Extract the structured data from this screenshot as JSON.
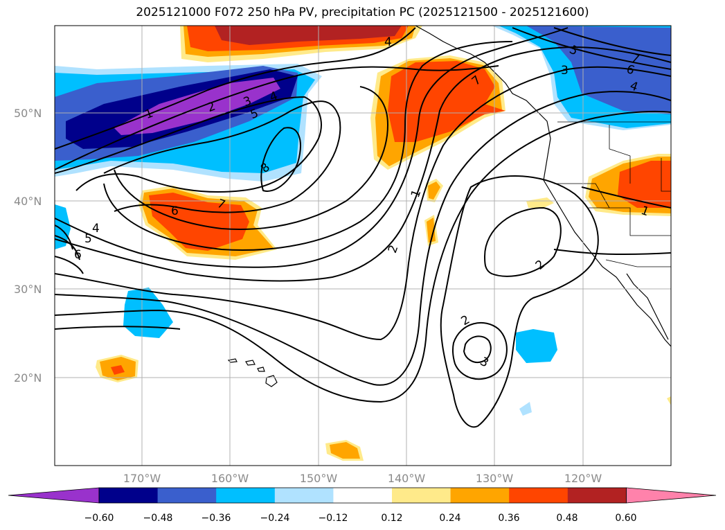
{
  "title": "2025121000 F072 250 hPa PV, precipitation PC (2025121500 - 2025121600)",
  "latitude_labels": [
    "50°N",
    "40°N",
    "30°N",
    "20°N"
  ],
  "longitude_labels": [
    "170°W",
    "160°W",
    "150°W",
    "140°W",
    "130°W",
    "120°W"
  ],
  "colorbar": {
    "ticks": [
      "−0.60",
      "−0.48",
      "−0.36",
      "−0.24",
      "−0.12",
      "0.12",
      "0.24",
      "0.36",
      "0.48",
      "0.60"
    ],
    "colors": [
      "#9932cc",
      "#00008b",
      "#3a5fcd",
      "#00bfff",
      "#b0e2ff",
      "#ffffff",
      "#ffea8a",
      "#ffa500",
      "#ff4500",
      "#b22222",
      "#ff82ab"
    ]
  },
  "contour_labels": [
    "1",
    "2",
    "3",
    "4",
    "5",
    "6",
    "7",
    "8"
  ]
}
